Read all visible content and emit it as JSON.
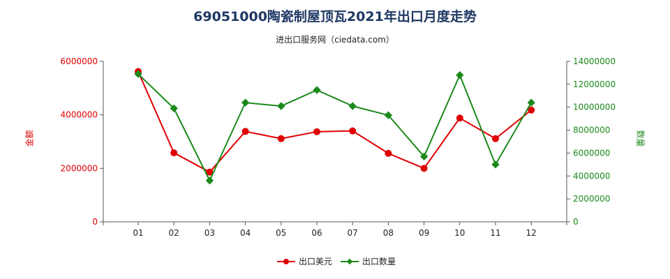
{
  "title": "69051000陶瓷制屋顶瓦2021年出口月度走势",
  "subtitle": "进出口服务网（ciedata.com）",
  "colors": {
    "usd": "#e00000",
    "qty": "#1a8a1a",
    "title": "#1f3864"
  },
  "chart_data": {
    "type": "line",
    "categories": [
      "01",
      "02",
      "03",
      "04",
      "05",
      "06",
      "07",
      "08",
      "09",
      "10",
      "11",
      "12"
    ],
    "y_left": {
      "label": "金额",
      "min": 0,
      "max": 6000000,
      "ticks": [
        "0",
        "2000000",
        "4000000",
        "6000000"
      ]
    },
    "y_right": {
      "label": "数量",
      "min": 0,
      "max": 14000000,
      "ticks": [
        "0",
        "2000000",
        "4000000",
        "6000000",
        "8000000",
        "10000000",
        "12000000",
        "14000000"
      ]
    },
    "series": [
      {
        "name": "出口美元",
        "axis": "left",
        "color": "#e00000",
        "values": [
          5620000,
          2580000,
          1860000,
          3380000,
          3110000,
          3370000,
          3400000,
          2560000,
          2000000,
          3880000,
          3110000,
          4180000
        ]
      },
      {
        "name": "出口数量",
        "axis": "right",
        "color": "#1a8a1a",
        "values": [
          12900000,
          9900000,
          3600000,
          10400000,
          10100000,
          11500000,
          10100000,
          9300000,
          5700000,
          12800000,
          5000000,
          10400000
        ]
      }
    ],
    "legend_position": "bottom-center",
    "grid": false
  }
}
